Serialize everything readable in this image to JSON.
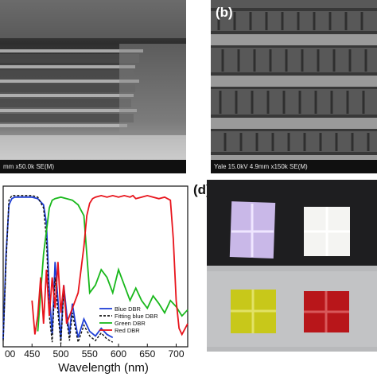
{
  "panel_a": {
    "caption": "mm x50.0k SE(M)"
  },
  "panel_b": {
    "label": "(b)",
    "caption": "Yale 15.0kV 4.9mm x150k SE(M)"
  },
  "panel_c": {
    "chart_data": {
      "type": "line",
      "xlabel": "Wavelength (nm)",
      "ylabel": "",
      "xlim": [
        400,
        720
      ],
      "x_ticks": [
        "00",
        "450",
        "500",
        "550",
        "600",
        "650",
        "700"
      ],
      "legend_placement": "bottom-right",
      "series": [
        {
          "name": "Blue DBR",
          "color": "#1f3fd6",
          "x": [
            400,
            405,
            410,
            415,
            420,
            430,
            440,
            450,
            460,
            470,
            475,
            480,
            485,
            490,
            495,
            500,
            505,
            510,
            515,
            520,
            525,
            530,
            540,
            550,
            560,
            570,
            580,
            590
          ],
          "y": [
            5,
            60,
            92,
            96,
            97,
            97,
            97,
            97,
            96,
            92,
            80,
            35,
            8,
            55,
            30,
            5,
            40,
            22,
            8,
            28,
            16,
            6,
            18,
            10,
            7,
            12,
            8,
            6
          ]
        },
        {
          "name": "Fitting blue DBR",
          "color": "#111111",
          "dashed": true,
          "x": [
            400,
            405,
            410,
            415,
            420,
            430,
            440,
            450,
            460,
            470,
            475,
            480,
            485,
            490,
            495,
            500,
            505,
            510,
            515,
            520,
            525,
            530,
            540,
            550,
            560,
            570,
            580,
            590
          ],
          "y": [
            4,
            55,
            95,
            98,
            98,
            98,
            98,
            98,
            97,
            90,
            70,
            20,
            3,
            45,
            22,
            2,
            35,
            18,
            4,
            22,
            12,
            3,
            14,
            7,
            4,
            9,
            5,
            3
          ]
        },
        {
          "name": "Green DBR",
          "color": "#19b81c",
          "x": [
            460,
            470,
            480,
            485,
            490,
            500,
            510,
            520,
            530,
            540,
            545,
            550,
            560,
            570,
            580,
            590,
            600,
            610,
            620,
            630,
            640,
            650,
            660,
            670,
            680,
            690,
            700,
            710,
            720
          ],
          "y": [
            10,
            60,
            90,
            95,
            96,
            97,
            96,
            95,
            92,
            85,
            60,
            35,
            40,
            50,
            45,
            35,
            50,
            40,
            30,
            38,
            30,
            25,
            33,
            28,
            22,
            30,
            26,
            20,
            24
          ]
        },
        {
          "name": "Red DBR",
          "color": "#e8141c",
          "x": [
            450,
            455,
            460,
            465,
            470,
            475,
            480,
            485,
            490,
            495,
            500,
            505,
            510,
            520,
            530,
            540,
            545,
            550,
            555,
            560,
            570,
            580,
            590,
            600,
            610,
            620,
            625,
            630,
            640,
            650,
            660,
            670,
            680,
            690,
            695,
            700,
            705,
            710,
            720
          ],
          "y": [
            30,
            8,
            20,
            45,
            15,
            50,
            20,
            45,
            25,
            55,
            22,
            40,
            15,
            25,
            35,
            65,
            85,
            93,
            96,
            97,
            98,
            97,
            98,
            97,
            98,
            97,
            98,
            96,
            97,
            98,
            97,
            96,
            97,
            95,
            70,
            30,
            12,
            8,
            15
          ]
        }
      ]
    }
  },
  "panel_d": {
    "label": "(d)",
    "samples": [
      {
        "name": "blue",
        "color": "#c9b8e8"
      },
      {
        "name": "white",
        "color": "#f4f4f2"
      },
      {
        "name": "green",
        "color": "#c8c81a"
      },
      {
        "name": "red",
        "color": "#b8161a"
      }
    ]
  }
}
